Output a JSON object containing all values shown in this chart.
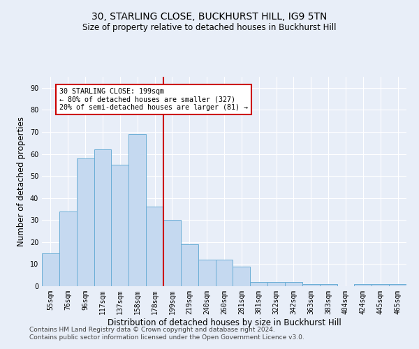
{
  "title": "30, STARLING CLOSE, BUCKHURST HILL, IG9 5TN",
  "subtitle": "Size of property relative to detached houses in Buckhurst Hill",
  "xlabel": "Distribution of detached houses by size in Buckhurst Hill",
  "ylabel": "Number of detached properties",
  "bar_labels": [
    "55sqm",
    "76sqm",
    "96sqm",
    "117sqm",
    "137sqm",
    "158sqm",
    "178sqm",
    "199sqm",
    "219sqm",
    "240sqm",
    "260sqm",
    "281sqm",
    "301sqm",
    "322sqm",
    "342sqm",
    "363sqm",
    "383sqm",
    "404sqm",
    "424sqm",
    "445sqm",
    "465sqm"
  ],
  "bar_values": [
    15,
    34,
    58,
    62,
    55,
    69,
    36,
    30,
    19,
    12,
    12,
    9,
    2,
    2,
    2,
    1,
    1,
    0,
    1,
    1,
    1
  ],
  "bar_color": "#c5d9f0",
  "bar_edge_color": "#6baed6",
  "highlight_line_color": "#cc0000",
  "annotation_text": "30 STARLING CLOSE: 199sqm\n← 80% of detached houses are smaller (327)\n20% of semi-detached houses are larger (81) →",
  "annotation_box_color": "#ffffff",
  "annotation_box_edge_color": "#cc0000",
  "ylim": [
    0,
    95
  ],
  "yticks": [
    0,
    10,
    20,
    30,
    40,
    50,
    60,
    70,
    80,
    90
  ],
  "footer_line1": "Contains HM Land Registry data © Crown copyright and database right 2024.",
  "footer_line2": "Contains public sector information licensed under the Open Government Licence v3.0.",
  "background_color": "#e8eef8",
  "grid_color": "#ffffff",
  "title_fontsize": 10,
  "subtitle_fontsize": 8.5,
  "tick_fontsize": 7,
  "label_fontsize": 8.5,
  "footer_fontsize": 6.5
}
